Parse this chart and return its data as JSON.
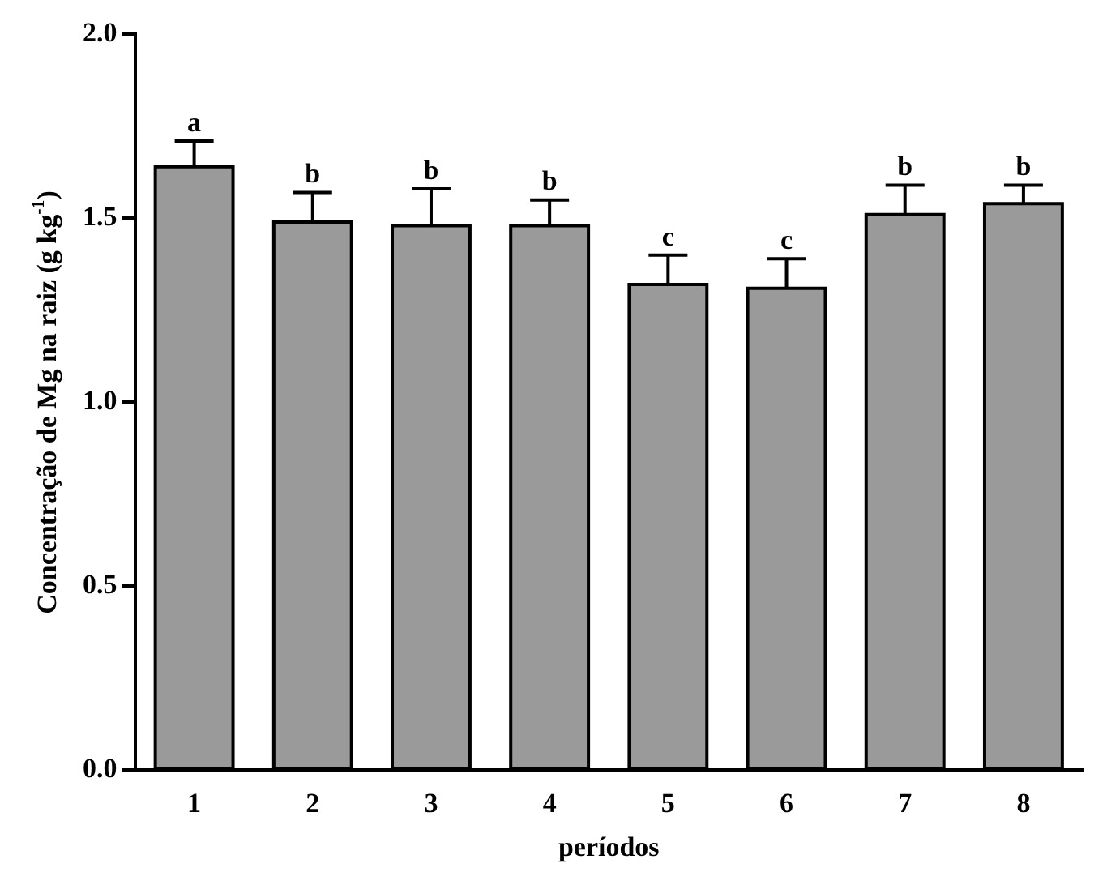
{
  "chart_data": {
    "type": "bar",
    "xlabel": "períodos",
    "ylabel": "Concentração de Mg na raiz (g kg$^{-1}$)",
    "categories": [
      "1",
      "2",
      "3",
      "4",
      "5",
      "6",
      "7",
      "8"
    ],
    "values": [
      1.64,
      1.49,
      1.48,
      1.48,
      1.32,
      1.31,
      1.51,
      1.54
    ],
    "errors": [
      0.07,
      0.08,
      0.1,
      0.07,
      0.08,
      0.08,
      0.08,
      0.05
    ],
    "color": "#9a9a9a",
    "ylim": [
      0,
      2
    ],
    "yticks": [
      {
        "value": 0,
        "label": "0.0"
      },
      {
        "value": 0.5,
        "label": "0.5"
      },
      {
        "value": 1,
        "label": "1.0"
      },
      {
        "value": 1.5,
        "label": "1.5"
      },
      {
        "value": 2,
        "label": "2.0"
      }
    ],
    "grid": false,
    "legend": false,
    "annotations": [
      {
        "text": "a",
        "x": "1",
        "y": 1.71
      },
      {
        "text": "b",
        "x": "2",
        "y": 1.57
      },
      {
        "text": "b",
        "x": "3",
        "y": 1.58
      },
      {
        "text": "b",
        "x": "4",
        "y": 1.55
      },
      {
        "text": "c",
        "x": "5",
        "y": 1.4
      },
      {
        "text": "c",
        "x": "6",
        "y": 1.39
      },
      {
        "text": "b",
        "x": "7",
        "y": 1.59
      },
      {
        "text": "b",
        "x": "8",
        "y": 1.59
      }
    ]
  }
}
